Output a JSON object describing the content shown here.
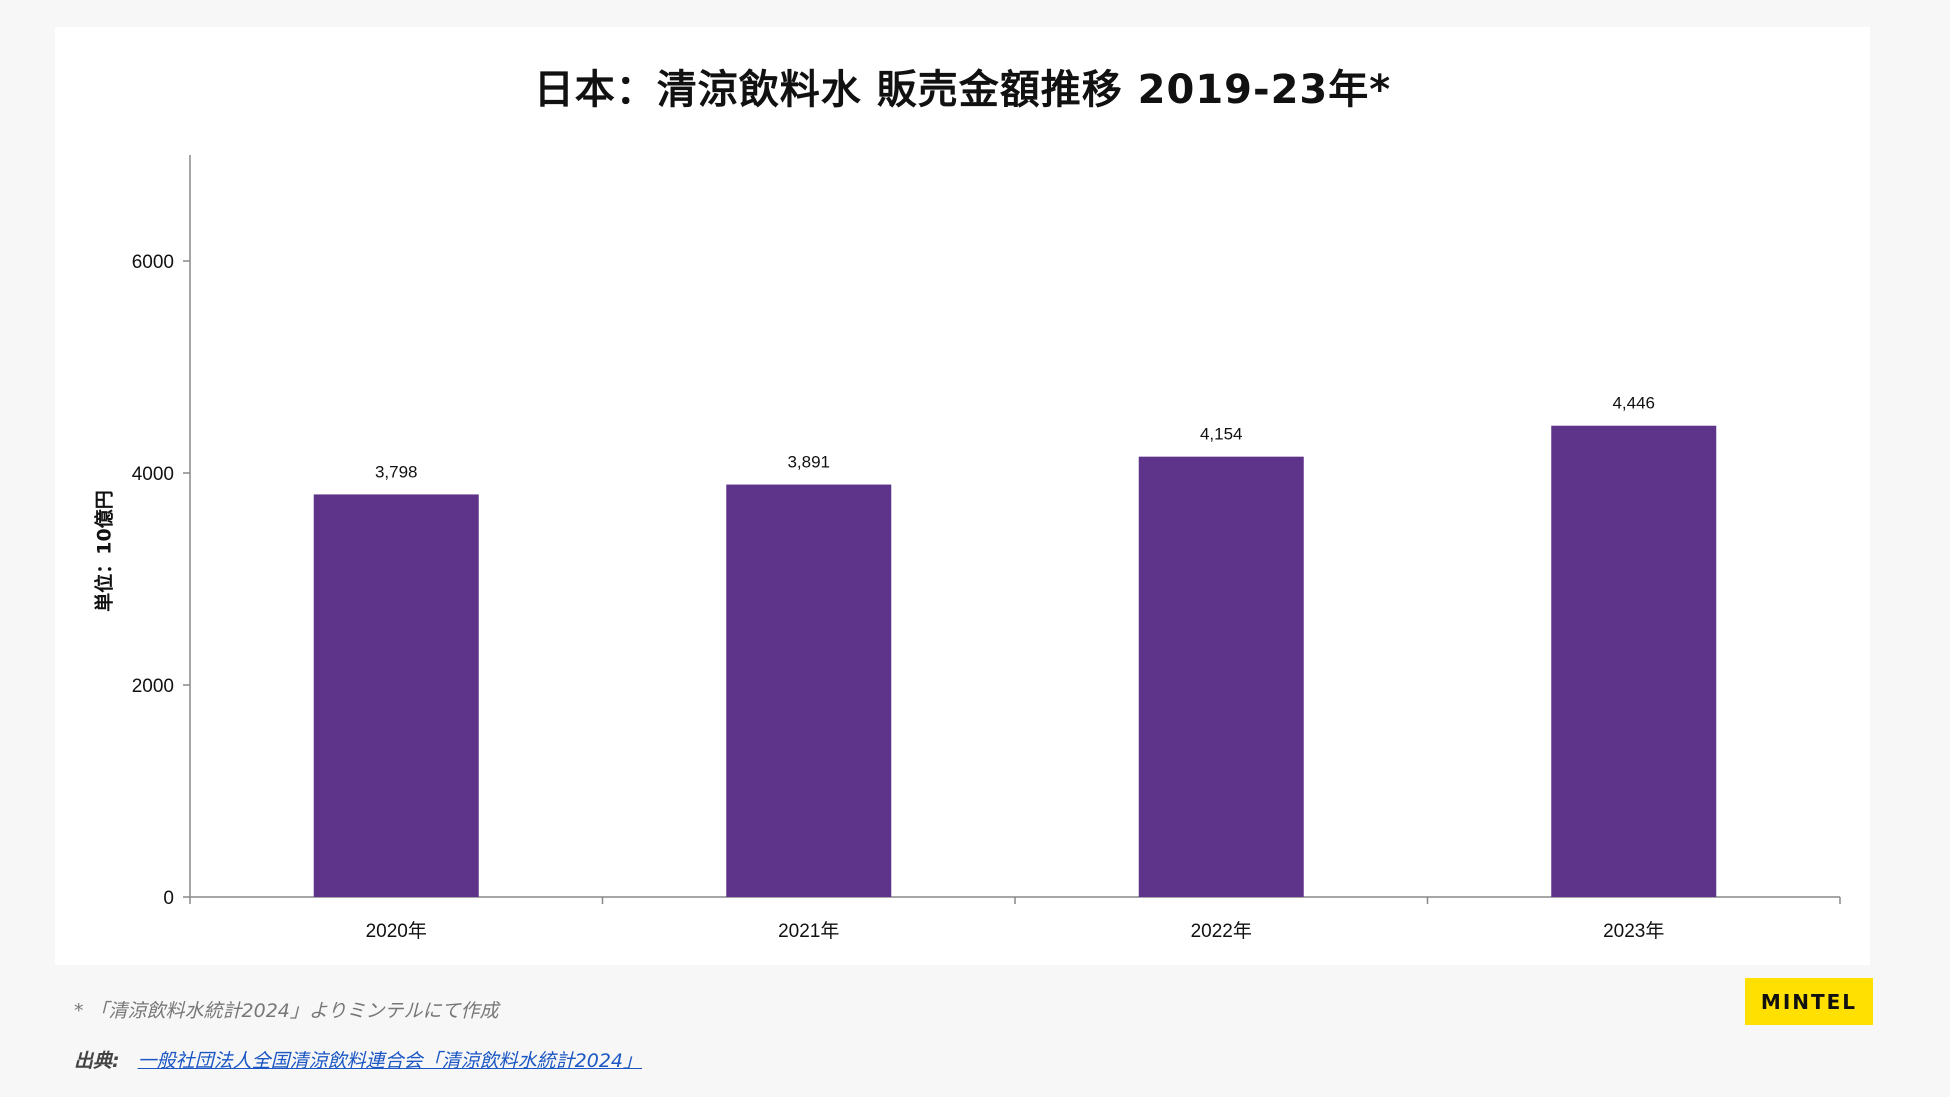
{
  "chart_data": {
    "type": "bar",
    "title": "日本：清涼飲料水 販売金額推移  2019-23年*",
    "ylabel": "単位：10億円",
    "xlabel": "",
    "categories": [
      "2020年",
      "2021年",
      "2022年",
      "2023年"
    ],
    "values": [
      3798,
      3891,
      4154,
      4446
    ],
    "data_labels": [
      "3,798",
      "3,891",
      "4,154",
      "4,446"
    ],
    "y_ticks": [
      "0",
      "2000",
      "4000",
      "6000"
    ],
    "y_tick_values": [
      0,
      2000,
      4000,
      6000
    ],
    "ylim": [
      0,
      7000
    ],
    "grid": false,
    "bar_color": "#5e348a"
  },
  "footer": {
    "note": "* 「清涼飲料水統計2024」よりミンテルにて作成",
    "source_label": "出典:",
    "source_link": "一般社団法人全国清涼飲料連合会「清涼飲料水統計2024」"
  },
  "brand": {
    "logo_text": "MINTEL",
    "logo_color": "#ffe000"
  }
}
